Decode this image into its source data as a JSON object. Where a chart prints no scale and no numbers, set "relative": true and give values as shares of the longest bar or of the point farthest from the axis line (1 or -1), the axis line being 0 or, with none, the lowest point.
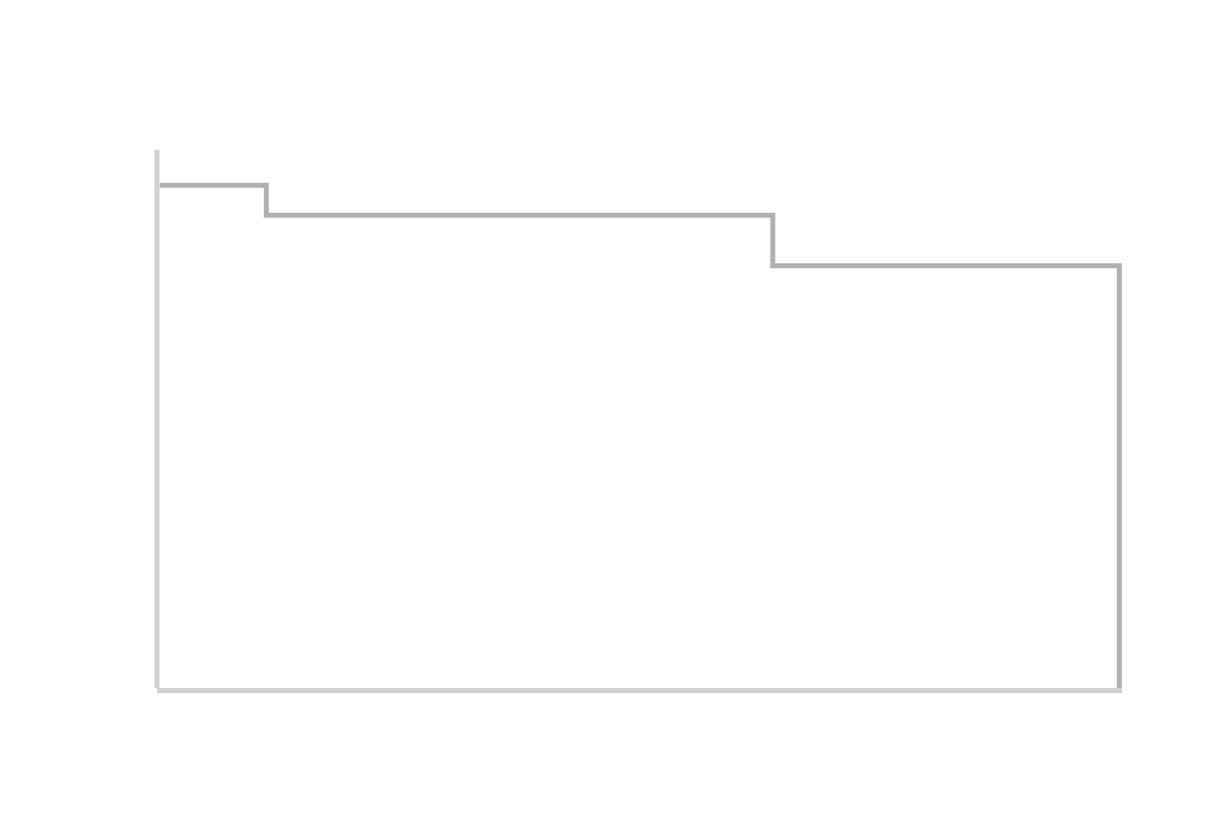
{
  "chart_data": {
    "type": "step",
    "relative": true,
    "categories": [
      null,
      null,
      null,
      null,
      null,
      null,
      null,
      null,
      null,
      null,
      null,
      null,
      null,
      null,
      null,
      null,
      null,
      null,
      null,
      null,
      null,
      null,
      null,
      null,
      null,
      null,
      null,
      null,
      null,
      null,
      null,
      null,
      null,
      null,
      null,
      null,
      null
    ],
    "series": [
      {
        "color": "#b0b0b0",
        "values": [
          1,
          1,
          1,
          1,
          0.94,
          0.94,
          0.94,
          0.94,
          0.94,
          0.94,
          0.94,
          0.94,
          0.94,
          0.94,
          0.94,
          0.94,
          0.94,
          0.94,
          0.94,
          0.94,
          0.94,
          0.94,
          0.94,
          0.84,
          0.84,
          0.84,
          0.84,
          0.84,
          0.84,
          0.84,
          0.84,
          0.84,
          0.84,
          0.84,
          0.84,
          0.84,
          0
        ]
      }
    ],
    "marker": "none",
    "line_style": "solid",
    "legend": false
  }
}
